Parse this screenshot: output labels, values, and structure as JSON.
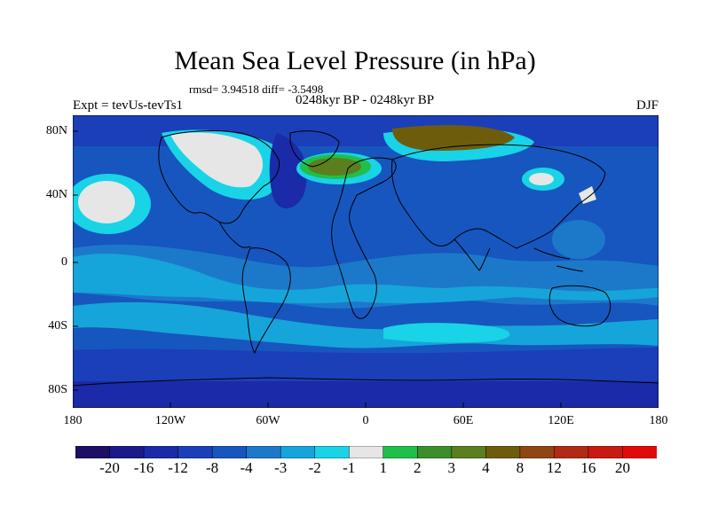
{
  "title": "Mean Sea Level Pressure (in hPa)",
  "stats": "rmsd= 3.94518 diff= -3.5498",
  "experiment": "Expt = tevUs-tevTs1",
  "period": "0248kyr BP - 0248kyr BP",
  "season": "DJF",
  "lat_labels": [
    "80N",
    "40N",
    "0",
    "40S",
    "80S"
  ],
  "lon_labels": [
    "180",
    "120W",
    "60W",
    "0",
    "60E",
    "120E",
    "180"
  ],
  "colorbar": {
    "labels": [
      "-20",
      "-16",
      "-12",
      "-8",
      "-4",
      "-3",
      "-2",
      "-1",
      "1",
      "2",
      "3",
      "4",
      "8",
      "12",
      "16",
      "20"
    ],
    "colors": [
      "#1d0f64",
      "#1a1a8a",
      "#1b2aa8",
      "#1b3fb8",
      "#1756be",
      "#1c79c9",
      "#15a5da",
      "#19d3e6",
      "#e6e6e6",
      "#1fbf4a",
      "#3a8f2a",
      "#5b7f1f",
      "#6e5c0d",
      "#8f4514",
      "#b02a14",
      "#c81a10",
      "#e00a0a"
    ]
  },
  "palette": {
    "bg_field": "#1756be",
    "ocean_light": "#1c79c9",
    "tropics": "#15a5da",
    "cyan": "#19d3e6",
    "white": "#e6e6e6",
    "green": "#1fbf4a",
    "olive": "#5b7f1f",
    "brown": "#6e5c0d",
    "deep": "#1b3fb8",
    "navy": "#1b2aa8"
  }
}
